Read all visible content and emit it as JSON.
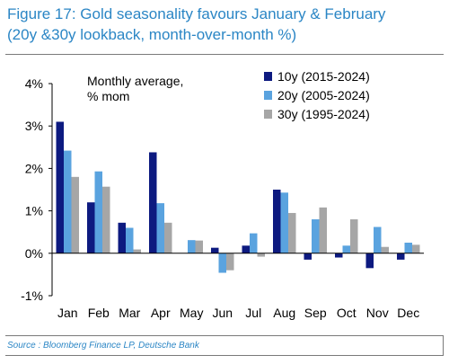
{
  "figure": {
    "title_line1": "Figure 17: Gold seasonality favours January & February",
    "title_line2": "(20y &30y lookback, month-over-month %)",
    "source": "Source : Bloomberg Finance LP, Deutsche Bank"
  },
  "chart_data": {
    "type": "bar",
    "annotation_line1": "Monthly average,",
    "annotation_line2": "% mom",
    "categories": [
      "Jan",
      "Feb",
      "Mar",
      "Apr",
      "May",
      "Jun",
      "Jul",
      "Aug",
      "Sep",
      "Oct",
      "Nov",
      "Dec"
    ],
    "ylim": [
      -1,
      4
    ],
    "yticks": [
      -1,
      0,
      1,
      2,
      3,
      4
    ],
    "ytick_labels": [
      "-1%",
      "0%",
      "1%",
      "2%",
      "3%",
      "4%"
    ],
    "grid": false,
    "legend_position": "top-right",
    "series": [
      {
        "name": "10y (2015-2024)",
        "color": "#0d1a80",
        "values": [
          3.1,
          1.2,
          0.72,
          2.38,
          0.0,
          0.13,
          0.18,
          1.5,
          -0.15,
          -0.1,
          -0.35,
          -0.15
        ]
      },
      {
        "name": "20y (2005-2024)",
        "color": "#5aa3df",
        "values": [
          2.42,
          1.93,
          0.6,
          1.18,
          0.31,
          -0.46,
          0.47,
          1.43,
          0.8,
          0.18,
          0.62,
          0.25
        ]
      },
      {
        "name": "30y (1995-2024)",
        "color": "#a6a6a6",
        "values": [
          1.8,
          1.57,
          0.09,
          0.72,
          0.3,
          -0.4,
          -0.08,
          0.95,
          1.08,
          0.8,
          0.15,
          0.2
        ]
      }
    ]
  }
}
